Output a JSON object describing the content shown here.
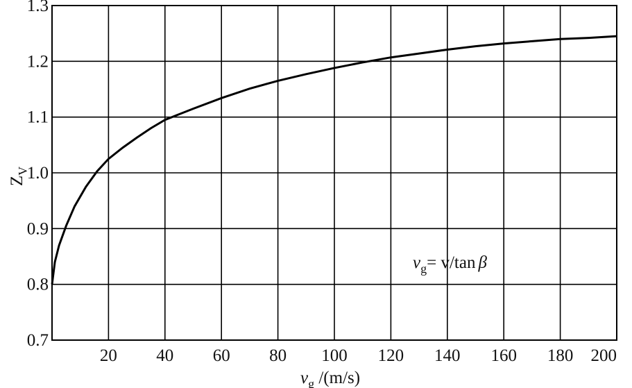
{
  "chart_data": {
    "type": "line",
    "xlabel_main": "v",
    "xlabel_sub": "g",
    "xlabel_tail": " /(m/s)",
    "ylabel_main": "Z",
    "ylabel_sub": "V",
    "annotation": {
      "part1": "v",
      "part2": "g",
      "part3": "= v/tan",
      "part4": "β"
    },
    "x_ticks": [
      20,
      40,
      60,
      80,
      100,
      120,
      140,
      160,
      180,
      200
    ],
    "y_ticks": [
      {
        "value": 0.7,
        "label": "0.7"
      },
      {
        "value": 0.8,
        "label": "0.8"
      },
      {
        "value": 0.9,
        "label": "0.9"
      },
      {
        "value": 1.0,
        "label": "1.0"
      },
      {
        "value": 1.1,
        "label": "1.1"
      },
      {
        "value": 1.2,
        "label": "1.2"
      },
      {
        "value": 1.3,
        "label": "1.3"
      }
    ],
    "xlim": [
      0,
      200
    ],
    "ylim": [
      0.7,
      1.3
    ],
    "grid": true,
    "series": [
      {
        "color": "#000000",
        "points": [
          [
            0,
            0.8
          ],
          [
            1,
            0.84
          ],
          [
            2.5,
            0.87
          ],
          [
            5,
            0.905
          ],
          [
            8,
            0.94
          ],
          [
            12,
            0.975
          ],
          [
            16,
            1.003
          ],
          [
            20,
            1.025
          ],
          [
            25,
            1.045
          ],
          [
            30,
            1.063
          ],
          [
            35,
            1.08
          ],
          [
            40,
            1.095
          ],
          [
            45,
            1.105
          ],
          [
            50,
            1.115
          ],
          [
            60,
            1.134
          ],
          [
            70,
            1.151
          ],
          [
            80,
            1.165
          ],
          [
            90,
            1.177
          ],
          [
            100,
            1.188
          ],
          [
            110,
            1.198
          ],
          [
            120,
            1.207
          ],
          [
            130,
            1.214
          ],
          [
            140,
            1.221
          ],
          [
            150,
            1.227
          ],
          [
            160,
            1.232
          ],
          [
            170,
            1.236
          ],
          [
            180,
            1.24
          ],
          [
            190,
            1.242
          ],
          [
            200,
            1.245
          ]
        ]
      }
    ]
  }
}
